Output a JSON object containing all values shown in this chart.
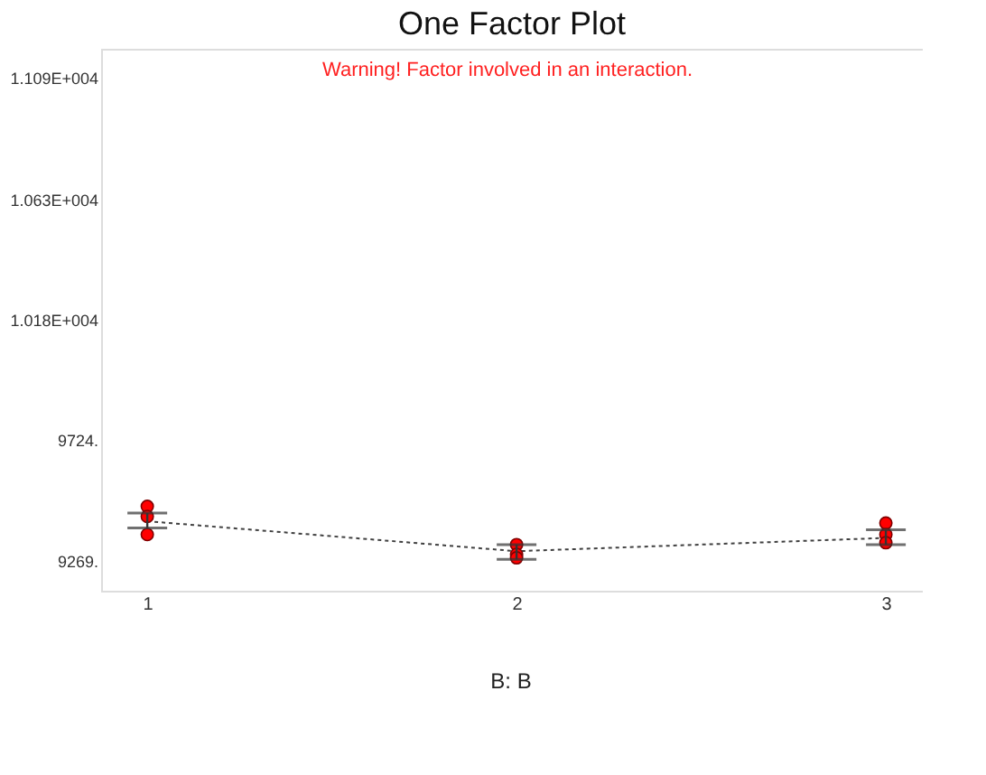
{
  "chart_data": {
    "type": "line",
    "title": "One Factor Plot",
    "xlabel": "B: B",
    "annotations": [
      "Warning! Factor involved in an interaction."
    ],
    "x": [
      1,
      2,
      3
    ],
    "xlim": [
      0.875,
      3.1
    ],
    "xticks": [
      1,
      2,
      3
    ],
    "ylim": [
      9157,
      11200
    ],
    "yticks": [
      {
        "value": 9269,
        "label": "9269."
      },
      {
        "value": 9724,
        "label": "9724."
      },
      {
        "value": 10180,
        "label": "1.018E+004"
      },
      {
        "value": 10630,
        "label": "1.063E+004"
      },
      {
        "value": 11090,
        "label": "1.109E+004"
      }
    ],
    "grid": false,
    "series": [
      {
        "color": "#404040",
        "line_style": "dotted",
        "marker": "none",
        "values": [
          9419,
          9306,
          9356
        ],
        "errors": [
          [
            9394,
            9450
          ],
          [
            9275,
            9331
          ],
          [
            9331,
            9387
          ]
        ]
      },
      {
        "type": "scatter",
        "color": "#ff0000",
        "marker": "circle",
        "x": [
          1,
          1,
          1,
          2,
          2,
          2,
          3,
          3,
          3
        ],
        "values": [
          9475,
          9437,
          9369,
          9331,
          9294,
          9281,
          9412,
          9369,
          9338
        ]
      }
    ]
  }
}
